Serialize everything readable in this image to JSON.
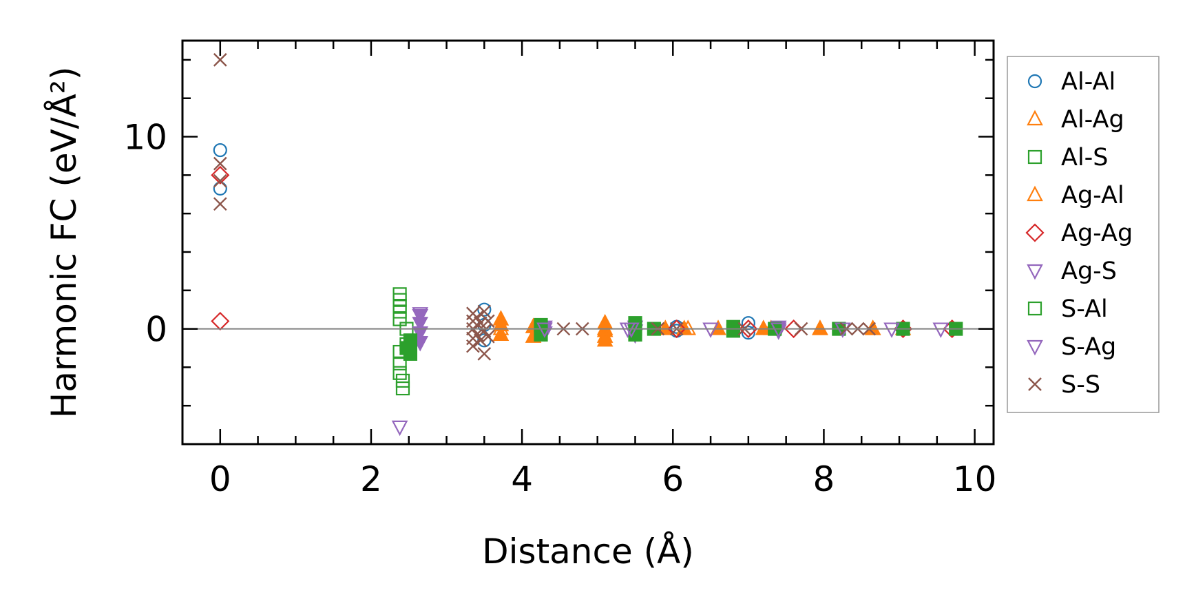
{
  "chart_data": {
    "type": "scatter",
    "xlabel": "Distance (Å)",
    "ylabel": "Harmonic FC (eV/Å²)",
    "xlim": [
      -0.5,
      10.25
    ],
    "ylim": [
      -6,
      15
    ],
    "x_ticks": [
      0,
      2,
      4,
      6,
      8,
      10
    ],
    "y_ticks": [
      0,
      10
    ],
    "grid": false,
    "zero_line": true,
    "legend_position": "right",
    "series": [
      {
        "name": "Al-Al",
        "marker": "circle",
        "color": "#1f77b4",
        "fill": "none",
        "x": [
          0,
          0,
          3.5,
          3.5,
          3.5,
          6.05,
          6.05,
          7.0,
          7.0
        ],
        "y": [
          9.3,
          7.3,
          1.0,
          0.2,
          -0.6,
          0.1,
          -0.1,
          0.3,
          -0.2
        ]
      },
      {
        "name": "Al-Ag",
        "marker": "triangle-up",
        "color": "#ff7f0e",
        "fill": "solid",
        "x": [
          3.72,
          3.72,
          3.72,
          4.15,
          4.15,
          5.1,
          5.1,
          5.1,
          5.1,
          5.9,
          6.15,
          6.6,
          7.2,
          7.95,
          8.65
        ],
        "y": [
          0.5,
          0.2,
          -0.3,
          0.1,
          -0.4,
          0.3,
          -0.1,
          -0.4,
          -0.6,
          0.0,
          0.0,
          0.0,
          0.0,
          0.0,
          0.0
        ]
      },
      {
        "name": "Al-S",
        "marker": "square",
        "color": "#2ca02c",
        "fill": "none",
        "x": [
          2.38,
          2.38,
          2.38,
          2.38,
          2.38,
          2.38,
          2.38,
          2.38,
          2.42,
          2.42,
          2.47,
          2.47
        ],
        "y": [
          1.8,
          1.5,
          1.2,
          0.9,
          0.5,
          -1.2,
          -1.8,
          -2.3,
          -2.7,
          -3.1,
          0.0,
          -0.8
        ]
      },
      {
        "name": "Ag-Al",
        "marker": "triangle-up",
        "color": "#ff7f0e",
        "fill": "none",
        "x": [
          3.72,
          5.1,
          6.2,
          7.3,
          7.95,
          8.65,
          9.05
        ],
        "y": [
          0.0,
          0.0,
          0.0,
          0.0,
          0.0,
          0.0,
          0.0
        ]
      },
      {
        "name": "Ag-Ag",
        "marker": "diamond",
        "color": "#d62728",
        "fill": "none",
        "x": [
          0,
          0,
          6.05,
          7.0,
          7.6,
          9.05,
          9.7
        ],
        "y": [
          8.0,
          0.4,
          0.0,
          0.0,
          0.0,
          0.0,
          0.0
        ]
      },
      {
        "name": "Ag-S",
        "marker": "triangle-down",
        "color": "#9467bd",
        "fill": "solid",
        "x": [
          2.65,
          2.65,
          2.65,
          2.65,
          4.3,
          4.3,
          5.5,
          5.5,
          5.5,
          7.4,
          7.4
        ],
        "y": [
          0.7,
          0.3,
          -0.2,
          -0.7,
          0.1,
          -0.2,
          0.1,
          -0.1,
          -0.3,
          0.1,
          -0.1
        ]
      },
      {
        "name": "S-Al",
        "marker": "square",
        "color": "#2ca02c",
        "fill": "solid",
        "x": [
          2.47,
          2.52,
          2.52,
          4.25,
          4.25,
          5.5,
          5.5,
          5.5,
          5.75,
          6.8,
          6.8,
          7.35,
          8.2,
          9.05,
          9.75
        ],
        "y": [
          -1.0,
          -0.6,
          -1.3,
          0.2,
          -0.3,
          0.3,
          0.0,
          -0.3,
          0.0,
          0.1,
          -0.1,
          0.0,
          0.0,
          0.0,
          0.0
        ]
      },
      {
        "name": "S-Ag",
        "marker": "triangle-down",
        "color": "#9467bd",
        "fill": "none",
        "x": [
          2.38,
          2.65,
          4.3,
          5.4,
          5.45,
          6.5,
          7.4,
          8.25,
          8.9,
          9.55
        ],
        "y": [
          -5.1,
          0.8,
          0.0,
          0.0,
          0.0,
          0.0,
          0.0,
          0.0,
          0.0,
          0.0
        ]
      },
      {
        "name": "S-S",
        "marker": "x",
        "color": "#8c564b",
        "fill": "none",
        "x": [
          0,
          0,
          0,
          0,
          3.35,
          3.35,
          3.35,
          3.35,
          3.35,
          3.4,
          3.4,
          3.45,
          3.45,
          3.5,
          3.5,
          3.5,
          3.55,
          3.55,
          4.55,
          4.8,
          5.8,
          6.05,
          6.95,
          7.7,
          8.3,
          8.45,
          8.6
        ],
        "y": [
          14.0,
          8.6,
          7.7,
          6.5,
          0.8,
          0.4,
          0.0,
          -0.5,
          -0.9,
          0.6,
          -0.3,
          0.3,
          -0.6,
          0.9,
          -0.1,
          -1.3,
          0.4,
          -0.4,
          0.0,
          0.0,
          0.0,
          0.0,
          0.0,
          0.0,
          0.0,
          0.0,
          0.0
        ]
      }
    ]
  }
}
